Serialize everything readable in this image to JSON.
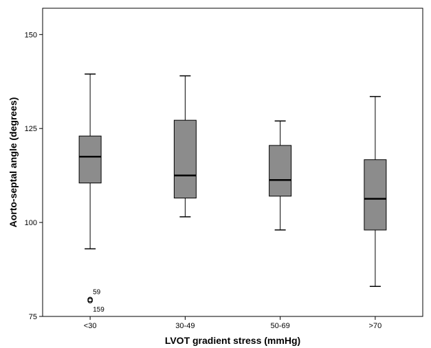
{
  "chart_data": {
    "type": "boxplot",
    "title": "",
    "xlabel": "LVOT gradient stress (mmHg)",
    "ylabel": "Aorto-septal angle (degrees)",
    "ylim": [
      75,
      157
    ],
    "yticks": [
      75,
      100,
      125,
      150
    ],
    "grid": false,
    "categories": [
      "<30",
      "30-49",
      "50-69",
      ">70"
    ],
    "box_color": "#8c8c8c",
    "boxes": [
      {
        "category": "<30",
        "whisker_low": 93.0,
        "q1": 110.5,
        "median": 117.5,
        "q3": 123.0,
        "whisker_high": 139.5
      },
      {
        "category": "30-49",
        "whisker_low": 101.5,
        "q1": 106.5,
        "median": 112.5,
        "q3": 127.2,
        "whisker_high": 139.0
      },
      {
        "category": "50-69",
        "whisker_low": 98.0,
        "q1": 107.0,
        "median": 111.3,
        "q3": 120.5,
        "whisker_high": 127.0
      },
      {
        "category": ">70",
        "whisker_low": 83.0,
        "q1": 98.0,
        "median": 106.3,
        "q3": 116.7,
        "whisker_high": 133.5
      }
    ],
    "outliers": [
      {
        "category": "<30",
        "value": 79.5,
        "label": "59"
      },
      {
        "category": "<30",
        "value": 79.2,
        "label": "159"
      }
    ]
  }
}
